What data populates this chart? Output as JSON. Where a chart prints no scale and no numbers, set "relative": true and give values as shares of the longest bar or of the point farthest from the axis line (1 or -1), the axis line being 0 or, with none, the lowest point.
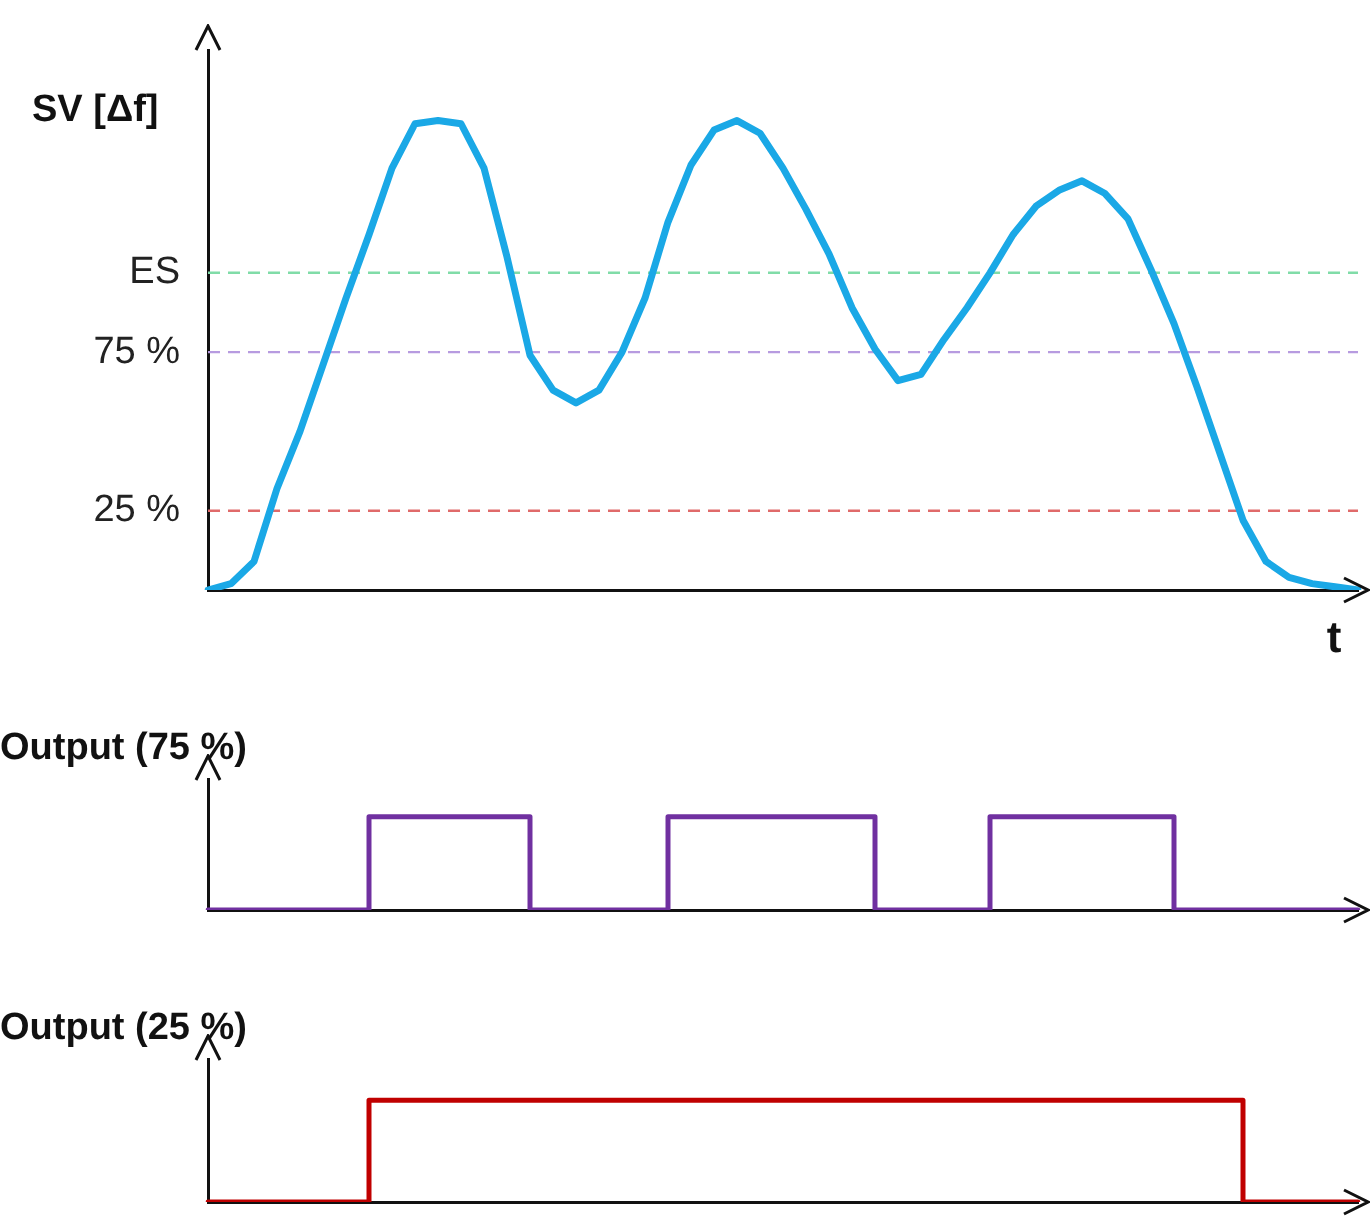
{
  "chart_data": [
    {
      "type": "line",
      "ylabel": "SV [Δf]",
      "xlabel": "t",
      "categories": [
        null,
        null,
        null,
        null,
        null,
        null,
        null,
        null,
        null,
        null,
        null,
        null,
        null,
        null,
        null,
        null,
        null,
        null,
        null,
        null,
        null,
        null,
        null,
        null,
        null,
        null,
        null,
        null,
        null,
        null,
        null,
        null,
        null,
        null,
        null,
        null,
        null,
        null,
        null,
        null,
        null,
        null,
        null,
        null,
        null,
        null,
        null,
        null,
        null,
        null,
        null
      ],
      "series": [
        {
          "color": "#1aa8e6",
          "values": [
            0,
            2,
            9,
            32,
            50,
            71,
            92,
            112,
            133,
            147,
            148,
            147,
            133,
            105,
            74,
            63,
            59,
            63,
            75,
            92,
            116,
            134,
            145,
            148,
            144,
            133,
            120,
            106,
            89,
            76,
            66,
            68,
            79,
            89,
            100,
            112,
            121,
            126,
            129,
            125,
            117,
            101,
            84,
            64,
            43,
            22,
            9,
            4,
            2,
            1,
            0
          ]
        }
      ],
      "ylim": [
        0,
        170
      ],
      "yticks": [
        {
          "value": 25,
          "label": "25 %"
        },
        {
          "value": 75,
          "label": "75 %"
        },
        {
          "value": 100,
          "label": "ES"
        }
      ],
      "ref_lines": [
        {
          "axis": "y",
          "value": 100,
          "color": "#80dca8",
          "line_style": "dashed"
        },
        {
          "axis": "y",
          "value": 75,
          "color": "#b79be0",
          "line_style": "dashed"
        },
        {
          "axis": "y",
          "value": 25,
          "color": "#e06a6a",
          "line_style": "dashed"
        }
      ],
      "grid": false,
      "legend": false,
      "marker": "none",
      "tick_labels": "y"
    },
    {
      "type": "step",
      "title": "Output (75 %)",
      "relative": true,
      "categories": [
        null,
        null,
        null,
        null,
        null,
        null,
        null,
        null,
        null,
        null,
        null,
        null,
        null,
        null,
        null,
        null,
        null,
        null,
        null,
        null,
        null,
        null,
        null,
        null,
        null,
        null,
        null,
        null,
        null,
        null,
        null,
        null,
        null,
        null,
        null,
        null,
        null,
        null,
        null,
        null,
        null,
        null,
        null,
        null,
        null,
        null,
        null,
        null,
        null,
        null,
        null
      ],
      "series": [
        {
          "color": "#7030a0",
          "values": [
            0,
            0,
            0,
            0,
            0,
            0,
            0,
            1,
            1,
            1,
            1,
            1,
            1,
            1,
            0,
            0,
            0,
            0,
            0,
            0,
            1,
            1,
            1,
            1,
            1,
            1,
            1,
            1,
            1,
            0,
            0,
            0,
            0,
            0,
            1,
            1,
            1,
            1,
            1,
            1,
            1,
            1,
            0,
            0,
            0,
            0,
            0,
            0,
            0,
            0,
            0
          ]
        }
      ],
      "grid": false,
      "legend": false,
      "marker": "none",
      "tick_labels": false
    },
    {
      "type": "step",
      "title": "Output (25 %)",
      "relative": true,
      "categories": [
        null,
        null,
        null,
        null,
        null,
        null,
        null,
        null,
        null,
        null,
        null,
        null,
        null,
        null,
        null,
        null,
        null,
        null,
        null,
        null,
        null,
        null,
        null,
        null,
        null,
        null,
        null,
        null,
        null,
        null,
        null,
        null,
        null,
        null,
        null,
        null,
        null,
        null,
        null,
        null,
        null,
        null,
        null,
        null,
        null,
        null,
        null,
        null,
        null,
        null,
        null
      ],
      "series": [
        {
          "color": "#c00000",
          "values": [
            0,
            0,
            0,
            0,
            0,
            0,
            0,
            1,
            1,
            1,
            1,
            1,
            1,
            1,
            1,
            1,
            1,
            1,
            1,
            1,
            1,
            1,
            1,
            1,
            1,
            1,
            1,
            1,
            1,
            1,
            1,
            1,
            1,
            1,
            1,
            1,
            1,
            1,
            1,
            1,
            1,
            1,
            1,
            1,
            1,
            0,
            0,
            0,
            0,
            0,
            0
          ]
        }
      ],
      "grid": false,
      "legend": false,
      "marker": "none",
      "tick_labels": false
    }
  ]
}
